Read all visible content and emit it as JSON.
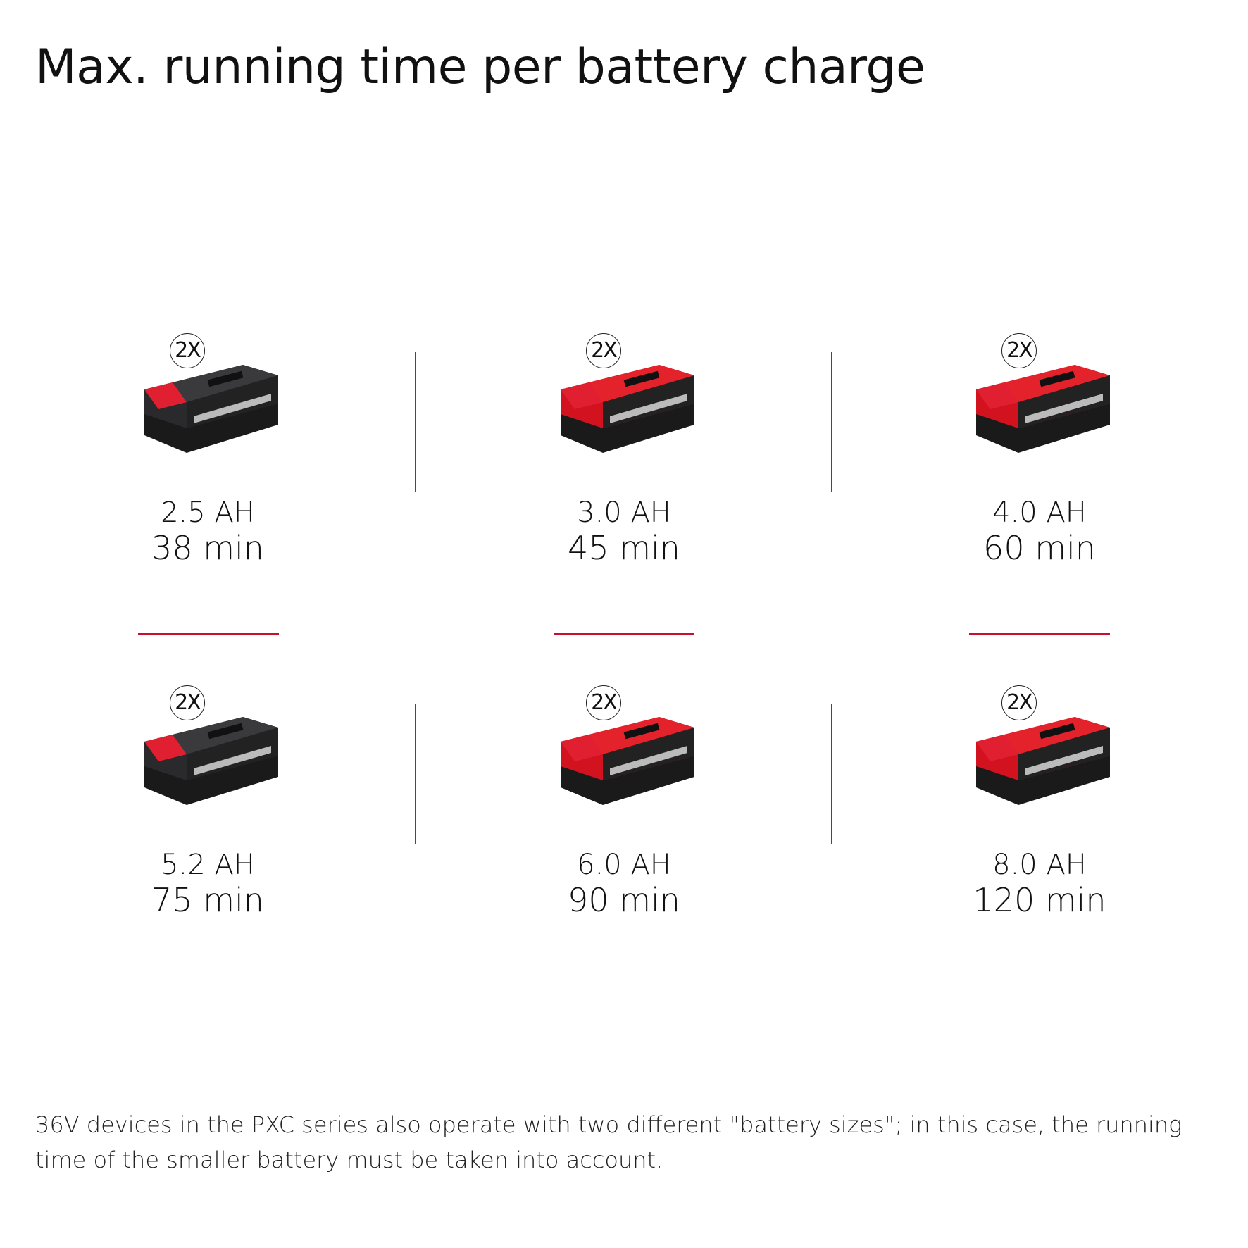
{
  "title": "Max. running time per battery charge",
  "accent_color": "#c8102e",
  "badge_label": "2X",
  "batteries": [
    {
      "capacity": "2.5 AH",
      "runtime": "38 min",
      "housing": "dark"
    },
    {
      "capacity": "3.0 AH",
      "runtime": "45 min",
      "housing": "red"
    },
    {
      "capacity": "4.0 AH",
      "runtime": "60 min",
      "housing": "red"
    },
    {
      "capacity": "5.2 AH",
      "runtime": "75 min",
      "housing": "dark"
    },
    {
      "capacity": "6.0 AH",
      "runtime": "90 min",
      "housing": "red"
    },
    {
      "capacity": "8.0 AH",
      "runtime": "120 min",
      "housing": "red"
    }
  ],
  "footer": "36V devices in the PXC series also operate with two different \"battery sizes\"; in this case, the running time of the smaller battery must be taken into account."
}
